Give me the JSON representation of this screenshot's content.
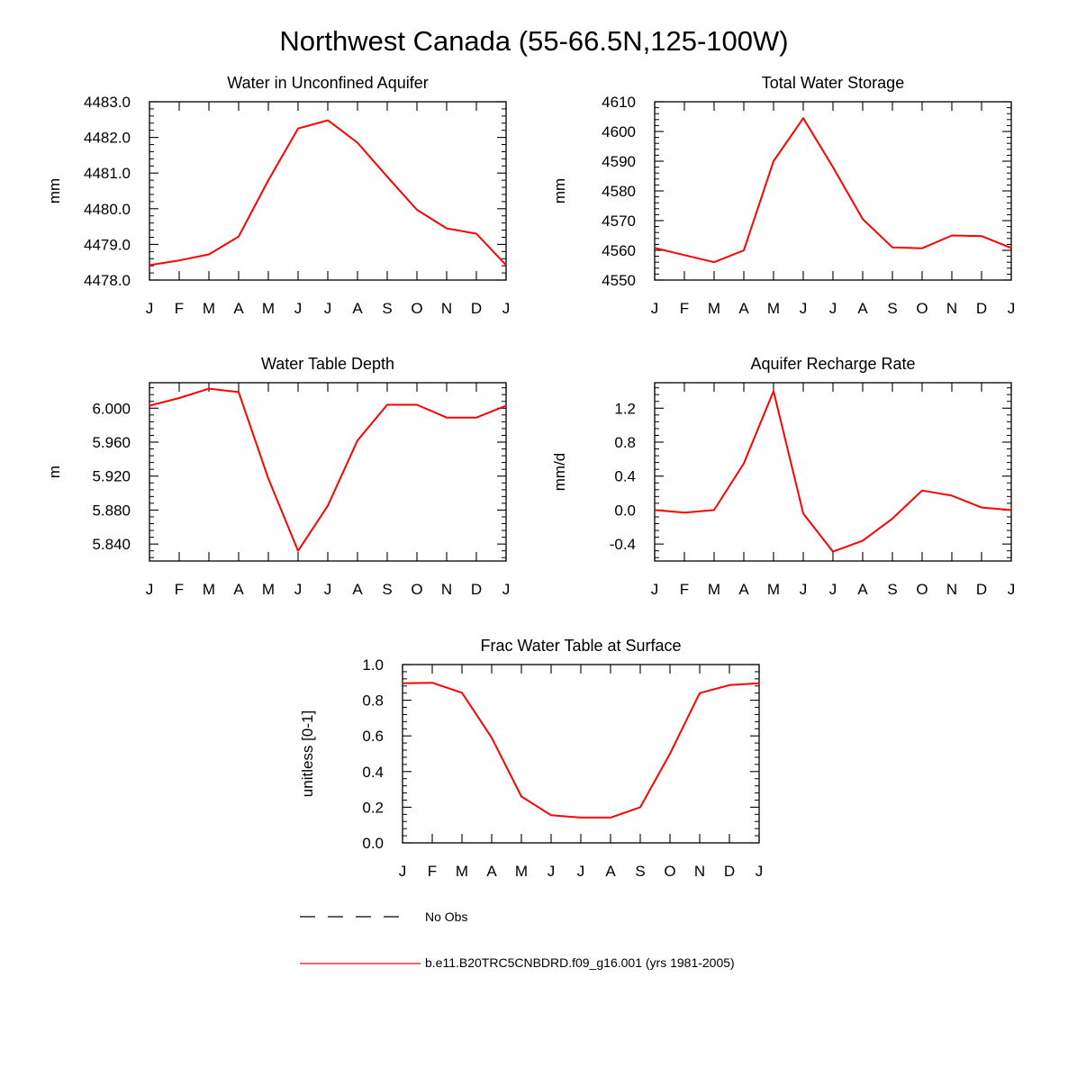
{
  "figure": {
    "title": "Northwest Canada (55-66.5N,125-100W)"
  },
  "chart_data": [
    {
      "type": "line",
      "title": "Water in Unconfined Aquifer",
      "xlabel": "",
      "ylabel": "mm",
      "xticklabels": [
        "J",
        "F",
        "M",
        "A",
        "M",
        "J",
        "J",
        "A",
        "S",
        "O",
        "N",
        "D",
        "J"
      ],
      "ylim": [
        4478.0,
        4483.0
      ],
      "yticks": [
        4478.0,
        4479.0,
        4480.0,
        4481.0,
        4482.0,
        4483.0
      ],
      "yticklabels": [
        "4478.0",
        "4479.0",
        "4480.0",
        "4481.0",
        "4482.0",
        "4483.0"
      ],
      "series": [
        {
          "name": "b.e11.B20TRC5CNBDRD.f09_g16.001 (yrs 1981-2005)",
          "color": "#ff0000",
          "values": [
            4478.42,
            4478.55,
            4478.72,
            4479.22,
            4480.8,
            4482.25,
            4482.48,
            4481.85,
            4480.9,
            4479.97,
            4479.45,
            4479.3,
            4478.42
          ]
        }
      ]
    },
    {
      "type": "line",
      "title": "Total Water Storage",
      "xlabel": "",
      "ylabel": "mm",
      "xticklabels": [
        "J",
        "F",
        "M",
        "A",
        "M",
        "J",
        "J",
        "A",
        "S",
        "O",
        "N",
        "D",
        "J"
      ],
      "ylim": [
        4550,
        4610
      ],
      "yticks": [
        4550,
        4560,
        4570,
        4580,
        4590,
        4600,
        4610
      ],
      "yticklabels": [
        "4550",
        "4560",
        "4570",
        "4580",
        "4590",
        "4600",
        "4610"
      ],
      "series": [
        {
          "name": "b.e11.B20TRC5CNBDRD.f09_g16.001 (yrs 1981-2005)",
          "color": "#ff0000",
          "values": [
            4560.8,
            4558.4,
            4556.0,
            4560.0,
            4590.0,
            4604.5,
            4588.0,
            4570.5,
            4561.0,
            4560.7,
            4565.0,
            4564.8,
            4560.8
          ]
        }
      ]
    },
    {
      "type": "line",
      "title": "Water Table Depth",
      "xlabel": "",
      "ylabel": "m",
      "xticklabels": [
        "J",
        "F",
        "M",
        "A",
        "M",
        "J",
        "J",
        "A",
        "S",
        "O",
        "N",
        "D",
        "J"
      ],
      "ylim": [
        5.82,
        6.03
      ],
      "yticks": [
        5.84,
        5.88,
        5.92,
        5.96,
        6.0
      ],
      "yticklabels": [
        "5.840",
        "5.880",
        "5.920",
        "5.960",
        "6.000"
      ],
      "series": [
        {
          "name": "b.e11.B20TRC5CNBDRD.f09_g16.001 (yrs 1981-2005)",
          "color": "#ff0000",
          "values": [
            6.003,
            6.012,
            6.023,
            6.019,
            5.917,
            5.832,
            5.885,
            5.962,
            6.004,
            6.004,
            5.989,
            5.989,
            6.003
          ]
        }
      ]
    },
    {
      "type": "line",
      "title": "Aquifer Recharge Rate",
      "xlabel": "",
      "ylabel": "mm/d",
      "xticklabels": [
        "J",
        "F",
        "M",
        "A",
        "M",
        "J",
        "J",
        "A",
        "S",
        "O",
        "N",
        "D",
        "J"
      ],
      "ylim": [
        -0.6,
        1.5
      ],
      "yticks": [
        -0.4,
        0.0,
        0.4,
        0.8,
        1.2
      ],
      "yticklabels": [
        "-0.4",
        "0.0",
        "0.4",
        "0.8",
        "1.2"
      ],
      "series": [
        {
          "name": "b.e11.B20TRC5CNBDRD.f09_g16.001 (yrs 1981-2005)",
          "color": "#ff0000",
          "values": [
            0.0,
            -0.03,
            0.0,
            0.55,
            1.4,
            -0.04,
            -0.49,
            -0.36,
            -0.1,
            0.23,
            0.17,
            0.03,
            0.0
          ]
        }
      ]
    },
    {
      "type": "line",
      "title": "Frac Water Table at Surface",
      "xlabel": "",
      "ylabel": "unitless [0-1]",
      "xticklabels": [
        "J",
        "F",
        "M",
        "A",
        "M",
        "J",
        "J",
        "A",
        "S",
        "O",
        "N",
        "D",
        "J"
      ],
      "ylim": [
        0.0,
        1.0
      ],
      "yticks": [
        0.0,
        0.2,
        0.4,
        0.6,
        0.8,
        1.0
      ],
      "yticklabels": [
        "0.0",
        "0.2",
        "0.4",
        "0.6",
        "0.8",
        "1.0"
      ],
      "series": [
        {
          "name": "b.e11.B20TRC5CNBDRD.f09_g16.001 (yrs 1981-2005)",
          "color": "#ff0000",
          "values": [
            0.895,
            0.898,
            0.842,
            0.59,
            0.26,
            0.155,
            0.142,
            0.142,
            0.2,
            0.5,
            0.84,
            0.885,
            0.895
          ]
        }
      ]
    }
  ],
  "legend": {
    "entries": [
      {
        "label": "No Obs",
        "style": "dashed",
        "color": "#000000"
      },
      {
        "label": "b.e11.B20TRC5CNBDRD.f09_g16.001 (yrs 1981-2005)",
        "style": "solid",
        "color": "#ff0000"
      }
    ]
  }
}
